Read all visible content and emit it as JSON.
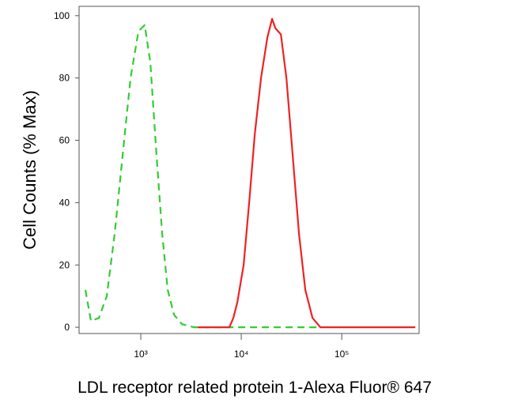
{
  "chart_data": {
    "type": "line",
    "x_label": "LDL receptor related protein 1-Alexa Fluor® 647",
    "y_label": "Cell Counts (% Max)",
    "xscale": "log",
    "xlim": [
      243,
      589000
    ],
    "xticks": [
      {
        "value": 1000,
        "label": "10³"
      },
      {
        "value": 10000,
        "label": "10⁴"
      },
      {
        "value": 100000,
        "label": "10⁵"
      }
    ],
    "ylim": [
      -2,
      103
    ],
    "yticks": [
      0,
      20,
      40,
      60,
      80,
      100
    ],
    "grid": false,
    "series": [
      {
        "color": "#33cc33",
        "dashed": true,
        "x": [
          281,
          319,
          383,
          458,
          549,
          659,
          790,
          947,
          1094,
          1243,
          1435,
          1632,
          1854,
          2142,
          2566,
          3373,
          5297,
          15740,
          56000
        ],
        "values": [
          12,
          2,
          3,
          10,
          30,
          55,
          80,
          95,
          97,
          85,
          55,
          30,
          12,
          4,
          1,
          0,
          0,
          0,
          0
        ]
      },
      {
        "color": "#ee2222",
        "dashed": false,
        "x": [
          3690,
          7620,
          8340,
          9140,
          10560,
          11990,
          13620,
          15740,
          18190,
          20290,
          21830,
          24780,
          28130,
          32510,
          37570,
          43420,
          51150,
          61250,
          138700,
          540000
        ],
        "values": [
          0,
          0,
          3,
          8,
          20,
          40,
          62,
          80,
          93,
          99,
          96,
          94,
          80,
          55,
          30,
          12,
          3,
          0,
          0,
          0
        ]
      }
    ]
  }
}
